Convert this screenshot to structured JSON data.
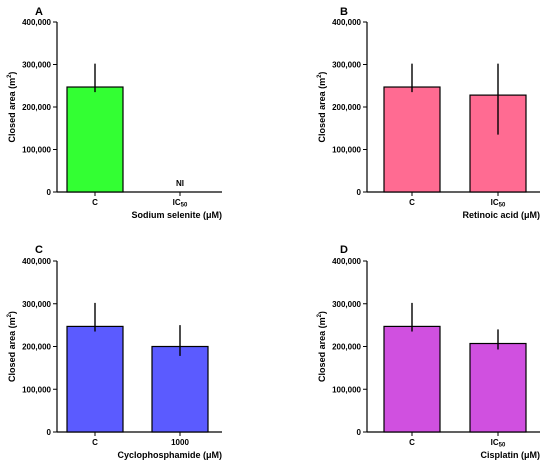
{
  "chart_data": [
    {
      "type": "bar",
      "panel": "A",
      "categories": [
        "C",
        "IC50"
      ],
      "values": [
        247000,
        null
      ],
      "error_low": [
        235000,
        null
      ],
      "error_high": [
        302000,
        null
      ],
      "bar_colors": [
        "#33ff33",
        "#33ff33"
      ],
      "annotations": [
        "",
        "NI"
      ],
      "xlabel": "Sodium selenite (μM)",
      "ylabel": "Closed area (m²)",
      "ylim": [
        0,
        400000
      ],
      "yticks": [
        "0",
        "100,000",
        "200,000",
        "300,000",
        "400,000"
      ]
    },
    {
      "type": "bar",
      "panel": "B",
      "categories": [
        "C",
        "IC50"
      ],
      "values": [
        247000,
        228000
      ],
      "error_low": [
        235000,
        135000
      ],
      "error_high": [
        302000,
        302000
      ],
      "bar_colors": [
        "#ff6b92",
        "#ff6b92"
      ],
      "annotations": [
        "",
        ""
      ],
      "xlabel": "Retinoic acid (μM)",
      "ylabel": "Closed area (m²)",
      "ylim": [
        0,
        400000
      ],
      "yticks": [
        "0",
        "100,000",
        "200,000",
        "300,000",
        "400,000"
      ]
    },
    {
      "type": "bar",
      "panel": "C",
      "categories": [
        "C",
        "1000"
      ],
      "values": [
        247000,
        200000
      ],
      "error_low": [
        235000,
        178000
      ],
      "error_high": [
        302000,
        250000
      ],
      "bar_colors": [
        "#5b5bff",
        "#5b5bff"
      ],
      "annotations": [
        "",
        ""
      ],
      "xlabel": "Cyclophosphamide (μM)",
      "ylabel": "Closed area (m²)",
      "ylim": [
        0,
        400000
      ],
      "yticks": [
        "0",
        "100,000",
        "200,000",
        "300,000",
        "400,000"
      ]
    },
    {
      "type": "bar",
      "panel": "D",
      "categories": [
        "C",
        "IC50"
      ],
      "values": [
        247000,
        207000
      ],
      "error_low": [
        235000,
        193000
      ],
      "error_high": [
        302000,
        240000
      ],
      "bar_colors": [
        "#d050e0",
        "#d050e0"
      ],
      "annotations": [
        "",
        ""
      ],
      "xlabel": "Cisplatin (μM)",
      "ylabel": "Closed area (m²)",
      "ylim": [
        0,
        400000
      ],
      "yticks": [
        "0",
        "100,000",
        "200,000",
        "300,000",
        "400,000"
      ]
    }
  ]
}
